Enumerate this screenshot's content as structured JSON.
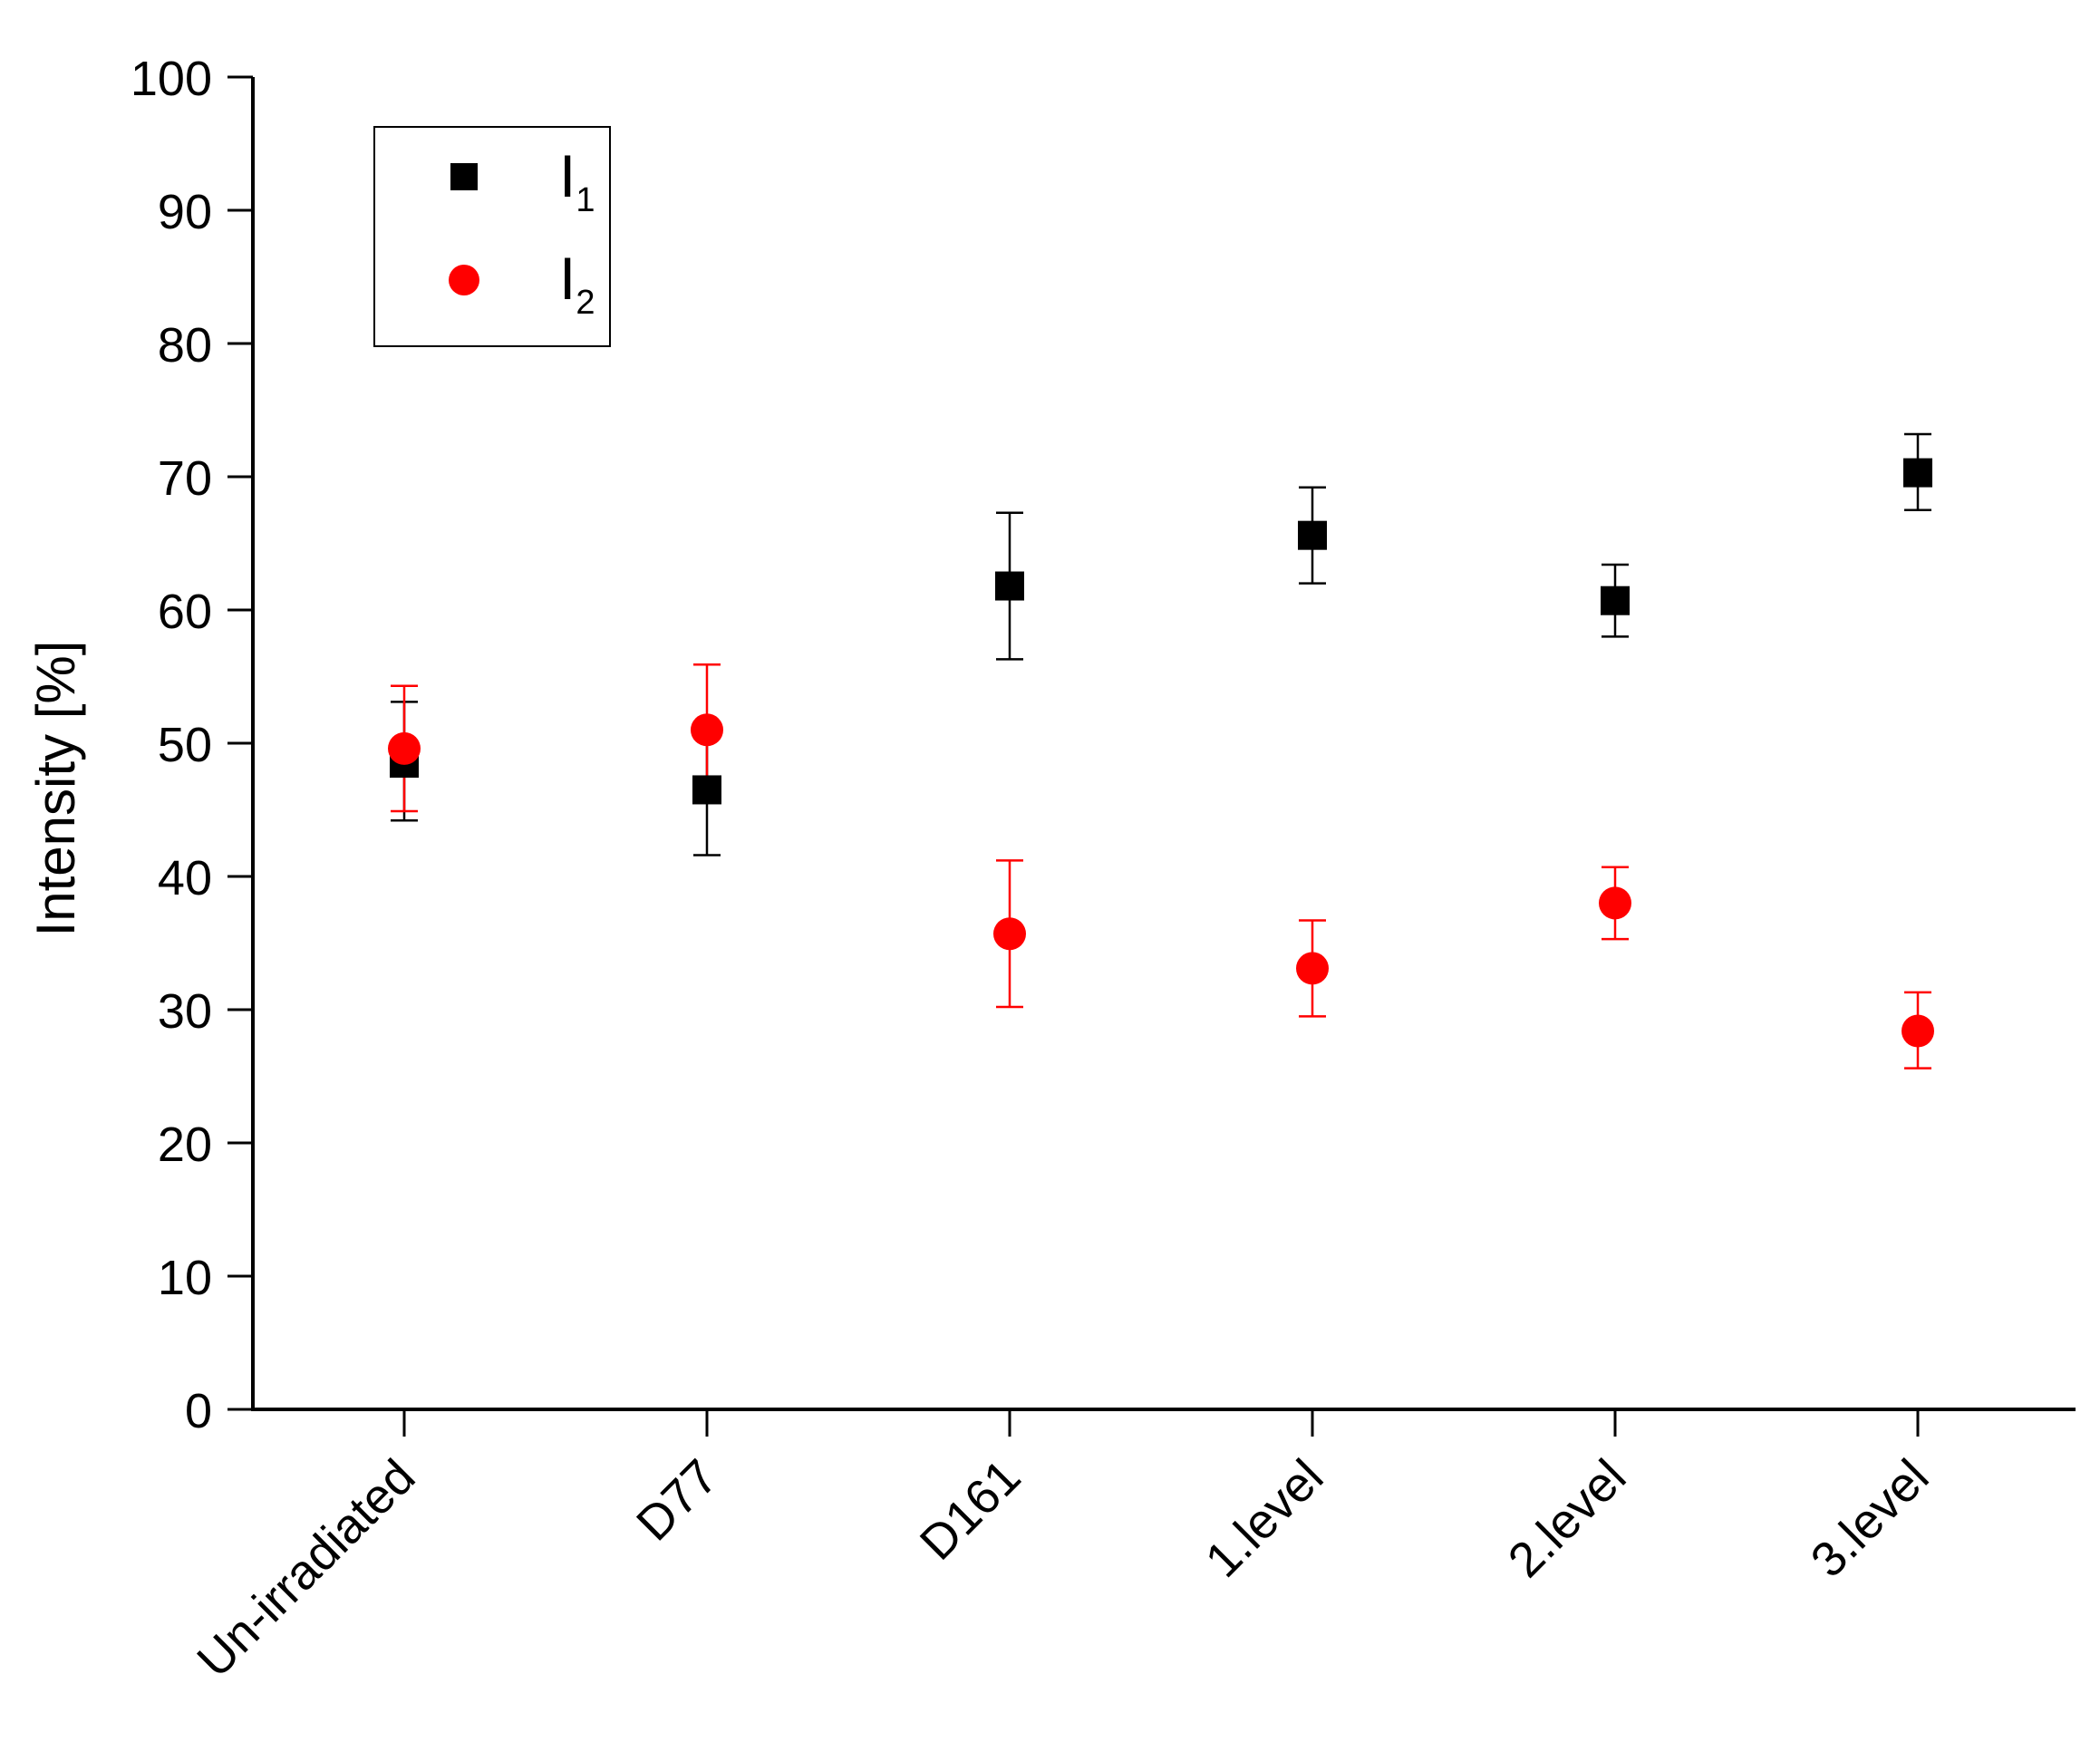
{
  "chart_data": {
    "type": "scatter",
    "title": "",
    "xlabel": "",
    "ylabel": "Intensity [%]",
    "ylim": [
      0,
      100
    ],
    "yticks": [
      0,
      10,
      20,
      30,
      40,
      50,
      60,
      70,
      80,
      90,
      100
    ],
    "categories": [
      "Un-irradiated",
      "D77",
      "D161",
      "1.level",
      "2.level",
      "3.level"
    ],
    "legend_position": "top-left",
    "grid": false,
    "series": [
      {
        "name": "I",
        "subscript": "1",
        "marker": "square",
        "color": "#000000",
        "values": [
          48.5,
          46.5,
          61.8,
          65.6,
          60.7,
          70.3
        ],
        "err_low": [
          44.2,
          41.6,
          56.3,
          62.0,
          58.0,
          67.5
        ],
        "err_high": [
          53.1,
          51.5,
          67.3,
          69.2,
          63.4,
          73.2
        ]
      },
      {
        "name": "I",
        "subscript": "2",
        "marker": "circle",
        "color": "#ff0000",
        "values": [
          49.6,
          51.0,
          35.7,
          33.1,
          38.0,
          28.4
        ],
        "err_low": [
          44.9,
          46.2,
          30.2,
          29.5,
          35.3,
          25.6
        ],
        "err_high": [
          54.3,
          55.9,
          41.2,
          36.7,
          40.7,
          31.3
        ]
      }
    ]
  }
}
